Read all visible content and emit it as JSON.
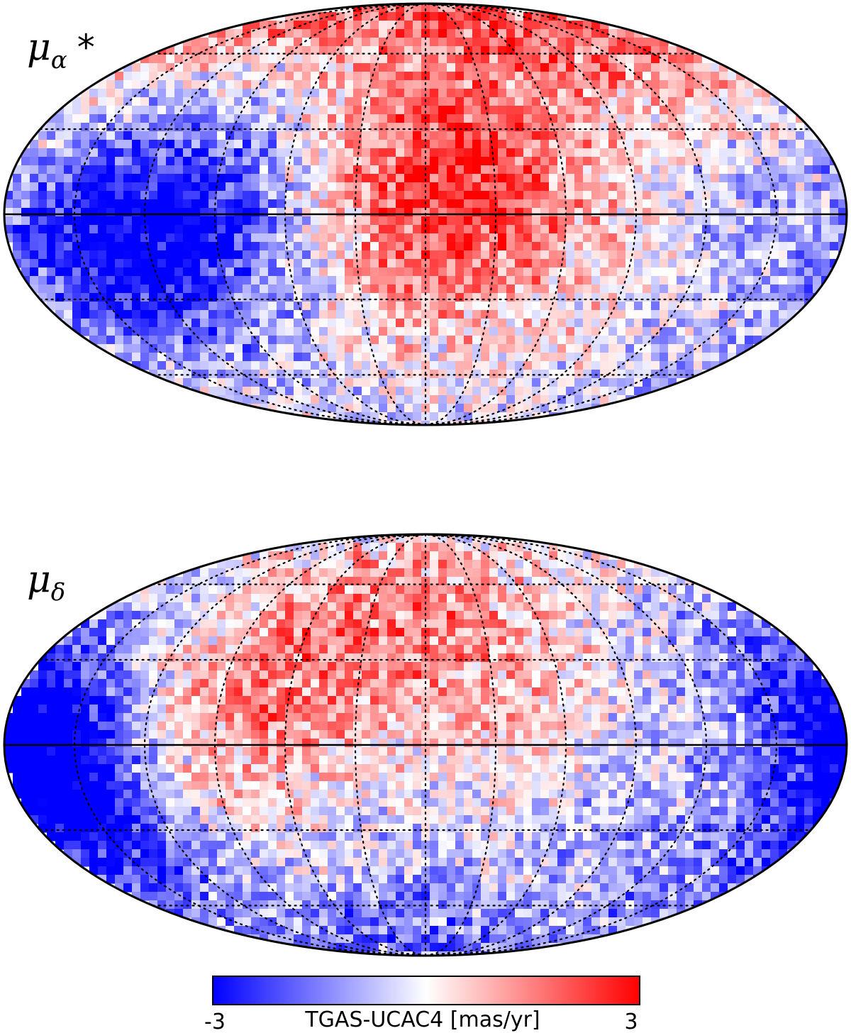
{
  "chart_data": [
    {
      "type": "heatmap",
      "projection": "mollweide",
      "panel_label": {
        "base": "μ",
        "subscript": "α",
        "suffix": "*"
      },
      "colormap": "blue-white-red",
      "grid": true,
      "hotspots": [
        {
          "lon": 120,
          "lat": 5,
          "value": -2.2,
          "spread": 35
        },
        {
          "lon": 145,
          "lat": -12,
          "value": -2.0,
          "spread": 28
        },
        {
          "lon": 85,
          "lat": -5,
          "value": -1.3,
          "spread": 20
        },
        {
          "lon": 0,
          "lat": 0,
          "value": 1.6,
          "spread": 28
        },
        {
          "lon": -35,
          "lat": 12,
          "value": 1.2,
          "spread": 25
        },
        {
          "lon": 0,
          "lat": 65,
          "value": 1.2,
          "spread": 40
        },
        {
          "lon": 140,
          "lat": 40,
          "value": 1.0,
          "spread": 30
        },
        {
          "lon": -125,
          "lat": 55,
          "value": 1.1,
          "spread": 30
        },
        {
          "lon": -140,
          "lat": 5,
          "value": -0.9,
          "spread": 22
        },
        {
          "lon": -110,
          "lat": -30,
          "value": -0.5,
          "spread": 30
        },
        {
          "lon": -80,
          "lat": -20,
          "value": 0.6,
          "spread": 25
        }
      ],
      "noise_amplitude": 1.1,
      "seed": 7
    },
    {
      "type": "heatmap",
      "projection": "mollweide",
      "panel_label": {
        "base": "μ",
        "subscript": "δ",
        "suffix": ""
      },
      "colormap": "blue-white-red",
      "grid": true,
      "hotspots": [
        {
          "lon": 165,
          "lat": 0,
          "value": -2.0,
          "spread": 30
        },
        {
          "lon": 150,
          "lat": -25,
          "value": -2.2,
          "spread": 30
        },
        {
          "lon": -165,
          "lat": 10,
          "value": -1.5,
          "spread": 30
        },
        {
          "lon": 90,
          "lat": 10,
          "value": 1.2,
          "spread": 30
        },
        {
          "lon": 45,
          "lat": 30,
          "value": 1.0,
          "spread": 28
        },
        {
          "lon": 0,
          "lat": 40,
          "value": 0.8,
          "spread": 30
        },
        {
          "lon": -40,
          "lat": 25,
          "value": 0.6,
          "spread": 25
        },
        {
          "lon": -90,
          "lat": -30,
          "value": -0.9,
          "spread": 30
        },
        {
          "lon": 30,
          "lat": -40,
          "value": -0.6,
          "spread": 30
        },
        {
          "lon": 0,
          "lat": -70,
          "value": -0.8,
          "spread": 25
        }
      ],
      "noise_amplitude": 1.1,
      "seed": 13
    }
  ],
  "colorbar": {
    "min": -3,
    "max": 3,
    "min_label": "-3",
    "max_label": "3",
    "label": "TGAS-UCAC4 [mas/yr]",
    "colors": [
      "#0000ff",
      "#ffffff",
      "#ff0000"
    ]
  }
}
